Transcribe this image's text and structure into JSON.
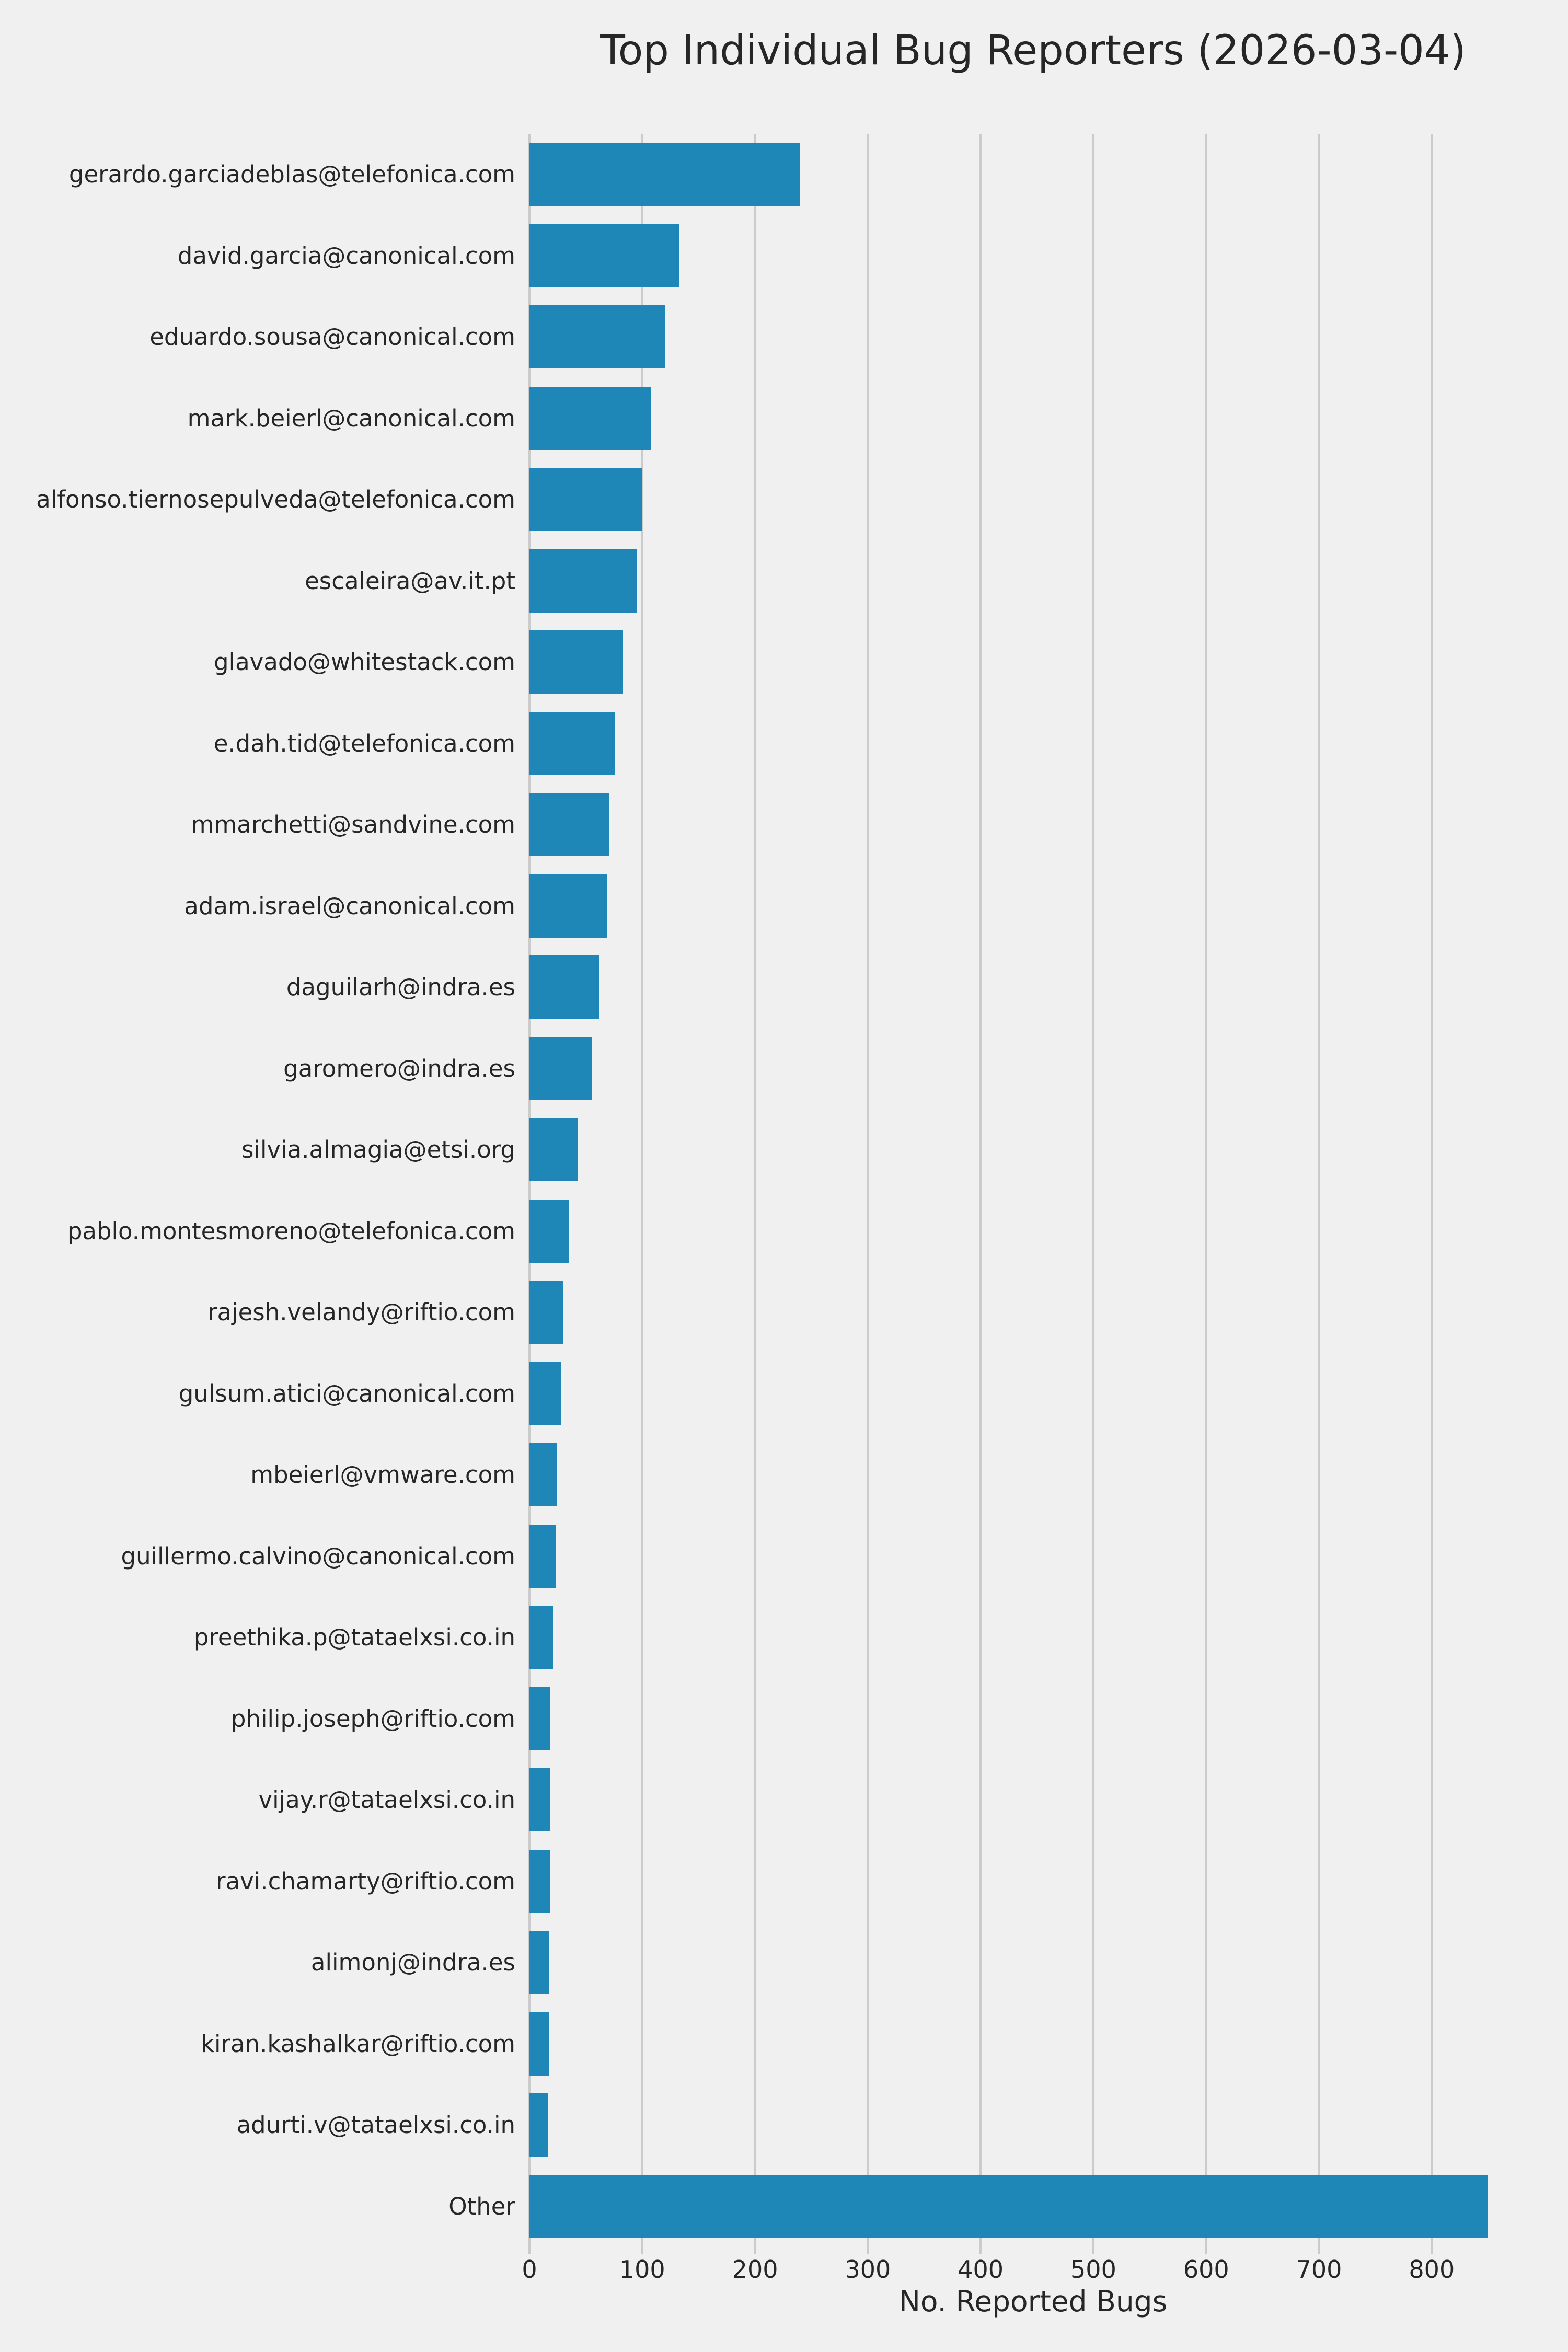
{
  "title": "Top Individual Bug Reporters (2026-03-04)",
  "chart_data": {
    "type": "bar",
    "orientation": "horizontal",
    "title": "Top Individual Bug Reporters (2026-03-04)",
    "xlabel": "No. Reported Bugs",
    "ylabel": "",
    "categories": [
      "gerardo.garciadeblas@telefonica.com",
      "david.garcia@canonical.com",
      "eduardo.sousa@canonical.com",
      "mark.beierl@canonical.com",
      "alfonso.tiernosepulveda@telefonica.com",
      "escaleira@av.it.pt",
      "glavado@whitestack.com",
      "e.dah.tid@telefonica.com",
      "mmarchetti@sandvine.com",
      "adam.israel@canonical.com",
      "daguilarh@indra.es",
      "garomero@indra.es",
      "silvia.almagia@etsi.org",
      "pablo.montesmoreno@telefonica.com",
      "rajesh.velandy@riftio.com",
      "gulsum.atici@canonical.com",
      "mbeierl@vmware.com",
      "guillermo.calvino@canonical.com",
      "preethika.p@tataelxsi.co.in",
      "philip.joseph@riftio.com",
      "vijay.r@tataelxsi.co.in",
      "ravi.chamarty@riftio.com",
      "alimonj@indra.es",
      "kiran.kashalkar@riftio.com",
      "adurti.v@tataelxsi.co.in",
      "Other"
    ],
    "values": [
      240,
      133,
      120,
      108,
      100,
      95,
      83,
      76,
      71,
      69,
      62,
      55,
      43,
      35,
      30,
      28,
      24,
      23,
      21,
      18,
      18,
      18,
      17,
      17,
      16,
      850
    ],
    "x_ticks": [
      0,
      100,
      200,
      300,
      400,
      500,
      600,
      700,
      800
    ],
    "xlim": [
      0,
      893
    ],
    "grid": true,
    "legend_position": "none",
    "colors": {
      "bar": "#1f86b8",
      "background": "#f0f0f0",
      "gridline": "#cbcbcb",
      "text": "#262626"
    }
  }
}
